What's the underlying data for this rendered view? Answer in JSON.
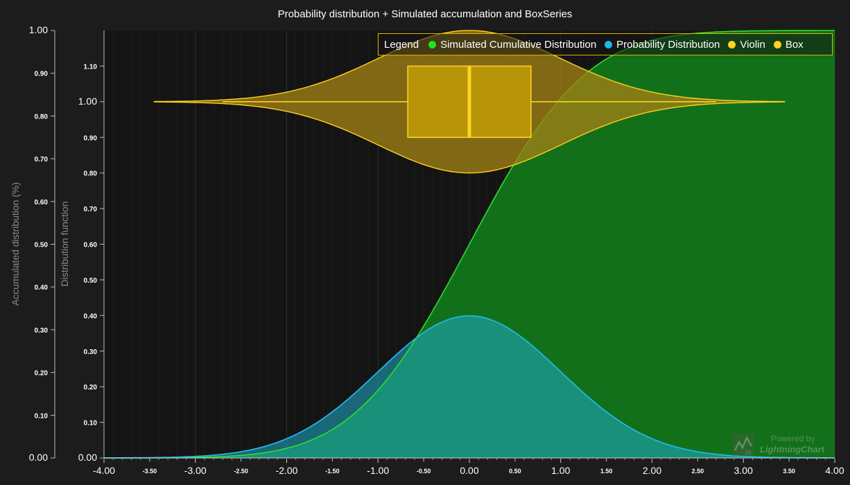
{
  "chart_data": {
    "type": "area",
    "title": "Probability distribution + Simulated accumulation and BoxSeries",
    "x": {
      "min": -4,
      "max": 4,
      "major_ticks": [
        "-4.00",
        "-3.00",
        "-2.00",
        "-1.00",
        "0.00",
        "1.00",
        "2.00",
        "3.00",
        "4.00"
      ],
      "minor_ticks": [
        "-3.50",
        "-2.50",
        "-1.50",
        "-0.50",
        "0.50",
        "1.50",
        "2.50",
        "3.50"
      ]
    },
    "y_left": {
      "label": "Accumulated distribution (%)",
      "min": 0,
      "max": 1,
      "ticks": [
        "0.00",
        "0.10",
        "0.20",
        "0.30",
        "0.40",
        "0.50",
        "0.60",
        "0.70",
        "0.80",
        "0.90",
        "1.00"
      ]
    },
    "y_inner": {
      "label": "Distribution function",
      "min": 0,
      "max": 1.2,
      "ticks": [
        "0.00",
        "0.10",
        "0.20",
        "0.30",
        "0.40",
        "0.50",
        "0.60",
        "0.70",
        "0.80",
        "0.90",
        "1.00",
        "1.10"
      ]
    },
    "series": [
      {
        "name": "Simulated Cumulative Distribution",
        "kind": "normal-cdf",
        "mean": 0,
        "std": 1,
        "color": "#2ae02a",
        "fill": "#13701a"
      },
      {
        "name": "Probability Distribution",
        "kind": "normal-pdf",
        "mean": 0,
        "std": 1,
        "color": "#1fb8e6",
        "fill": "rgba(31,172,200,0.55)"
      },
      {
        "name": "Violin",
        "kind": "violin",
        "center_y": 1.0,
        "half_width": 0.2,
        "x_range": [
          -3.45,
          3.45
        ],
        "color": "#ffd21f",
        "fill": "rgba(160,128,20,0.78)"
      },
      {
        "name": "Box",
        "kind": "box",
        "center_y": 1.0,
        "q1": -0.674,
        "median": 0,
        "q3": 0.674,
        "whisker_low": -2.7,
        "whisker_high": 2.7,
        "box_y_low": 0.9,
        "box_y_high": 1.1,
        "color": "#ffd21f",
        "fill": "#b89508"
      }
    ]
  },
  "legend": {
    "title": "Legend",
    "entries": [
      {
        "label": "Simulated Cumulative Distribution",
        "color": "#22e222"
      },
      {
        "label": "Probability Distribution",
        "color": "#1fb8e6"
      },
      {
        "label": "Violin",
        "color": "#ffd21f"
      },
      {
        "label": "Box",
        "color": "#ffd21f"
      }
    ]
  },
  "watermark": {
    "line1": "Powered by",
    "line2": "LightningChart",
    "badge": "JS"
  }
}
